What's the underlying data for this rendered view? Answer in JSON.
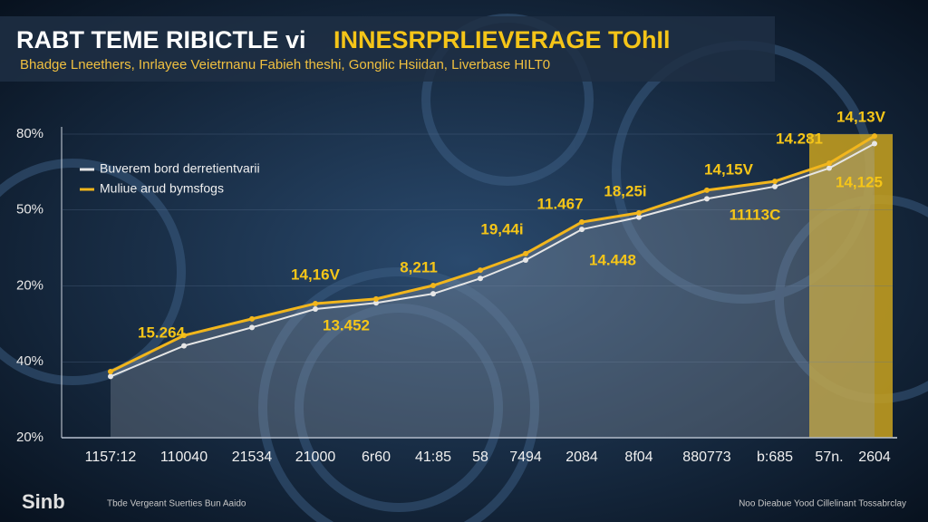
{
  "chart_data": {
    "type": "line",
    "title_parts": [
      "RABT TEME RIBICTLE vi",
      "INNESRPRLIEVERAGE TOhIl"
    ],
    "subtitle": "Bhadge Lneethers,  Inrlayee Veietrnanu Fabieh theshi, Gonglic Hsiidan,  Liverbase HILT0",
    "y_labels": [
      "80%",
      "50%",
      "20%",
      "40%",
      "20%"
    ],
    "categories": [
      "1157:12",
      "110040",
      "21534",
      "21000",
      "6r60",
      "41:85",
      "58",
      "7494",
      "2084",
      "8f04",
      "880773",
      "b:685",
      "57n.",
      "2604"
    ],
    "ylim": [
      0,
      100
    ],
    "series": [
      {
        "name": "Buverem bord derretientvarii",
        "color": "#e6e6e6",
        "values": [
          20,
          30,
          36,
          42,
          44,
          47,
          52,
          58,
          68,
          72,
          78,
          82,
          88,
          96
        ]
      },
      {
        "name": "Muliue arud bymsfogs",
        "color": "#f2b61c",
        "values": [
          21.6,
          33.4,
          38.8,
          43.8,
          45.3,
          49.7,
          54.7,
          60.1,
          70.4,
          73.4,
          80.8,
          83.7,
          89.6,
          98.5
        ]
      }
    ],
    "annotations": [
      "14,13V",
      "14.281",
      "14,15V",
      "14,125",
      "11113C",
      "18,25i",
      "11.467",
      "19,44i",
      "14.448",
      "8,211",
      "14,16V",
      "13.452",
      "15.264"
    ],
    "footer": {
      "logo": "Sinb",
      "left": "Tbde Vergeant Suerties Bun Aaido",
      "right": "Noo Dieabue Yood Cillelinant Tossabrclay"
    }
  }
}
